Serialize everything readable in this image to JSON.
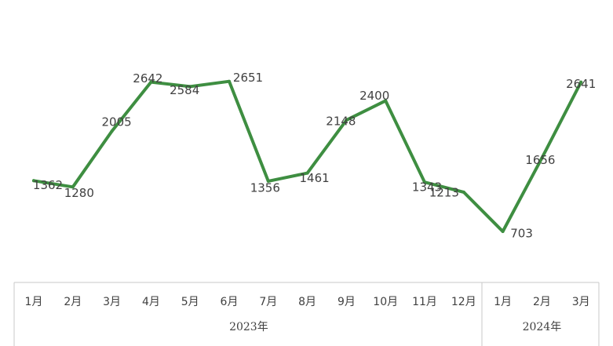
{
  "chart_data": {
    "type": "line",
    "categories": [
      "1月",
      "2月",
      "3月",
      "4月",
      "5月",
      "6月",
      "7月",
      "8月",
      "9月",
      "10月",
      "11月",
      "12月",
      "1月",
      "2月",
      "3月"
    ],
    "groups": [
      {
        "label": "2023年",
        "count": 12
      },
      {
        "label": "2024年",
        "count": 3
      }
    ],
    "series": [
      {
        "values": [
          1362,
          1280,
          2005,
          2642,
          2584,
          2651,
          1356,
          1461,
          2148,
          2400,
          1343,
          1213,
          703,
          1656,
          2641
        ]
      }
    ],
    "title": "",
    "xlabel": "",
    "ylabel": "",
    "grid": false,
    "legend": "none",
    "line_color": "#3e8e41"
  }
}
